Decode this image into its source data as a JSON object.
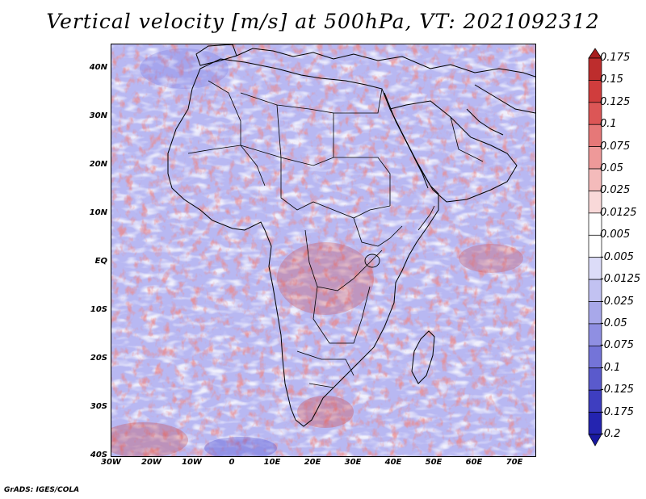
{
  "title": "Vertical velocity [m/s] at 500hPa, VT: 2021092312",
  "footer": "GrADS: IGES/COLA",
  "map": {
    "lon_range": [
      -30,
      75
    ],
    "lat_range": [
      -40,
      45
    ],
    "x_ticks": [
      {
        "lon": -30,
        "label": "30W"
      },
      {
        "lon": -20,
        "label": "20W"
      },
      {
        "lon": -10,
        "label": "10W"
      },
      {
        "lon": 0,
        "label": "0"
      },
      {
        "lon": 10,
        "label": "10E"
      },
      {
        "lon": 20,
        "label": "20E"
      },
      {
        "lon": 30,
        "label": "30E"
      },
      {
        "lon": 40,
        "label": "40E"
      },
      {
        "lon": 50,
        "label": "50E"
      },
      {
        "lon": 60,
        "label": "60E"
      },
      {
        "lon": 70,
        "label": "70E"
      }
    ],
    "y_ticks": [
      {
        "lat": 40,
        "label": "40N"
      },
      {
        "lat": 30,
        "label": "30N"
      },
      {
        "lat": 20,
        "label": "20N"
      },
      {
        "lat": 10,
        "label": "10N"
      },
      {
        "lat": 0,
        "label": "EQ"
      },
      {
        "lat": -10,
        "label": "10S"
      },
      {
        "lat": -20,
        "label": "20S"
      },
      {
        "lat": -30,
        "label": "30S"
      },
      {
        "lat": -40,
        "label": "40S"
      }
    ]
  },
  "colorbar": {
    "labels": [
      "0.175",
      "0.15",
      "0.125",
      "0.1",
      "0.075",
      "0.05",
      "0.025",
      "0.0125",
      "0.005",
      "-0.005",
      "-0.0125",
      "-0.025",
      "-0.05",
      "-0.075",
      "-0.1",
      "-0.125",
      "-0.175",
      "-0.2"
    ],
    "colors": [
      "#a81e1e",
      "#bd2d2d",
      "#d03d3d",
      "#dc5656",
      "#e67878",
      "#ee9999",
      "#f4bbbb",
      "#f9d9d9",
      "#ffffff",
      "#ffffff",
      "#dcdcf8",
      "#c2c2f2",
      "#a8a8ea",
      "#8f8fe2",
      "#7474d8",
      "#5a5acc",
      "#3e3ec0",
      "#2424b0",
      "#1818a0"
    ]
  },
  "colors": {
    "land_outline": "#000000",
    "positive": "#d04040",
    "negative": "#6a6ae0",
    "background_field": "#b4b4f0"
  }
}
